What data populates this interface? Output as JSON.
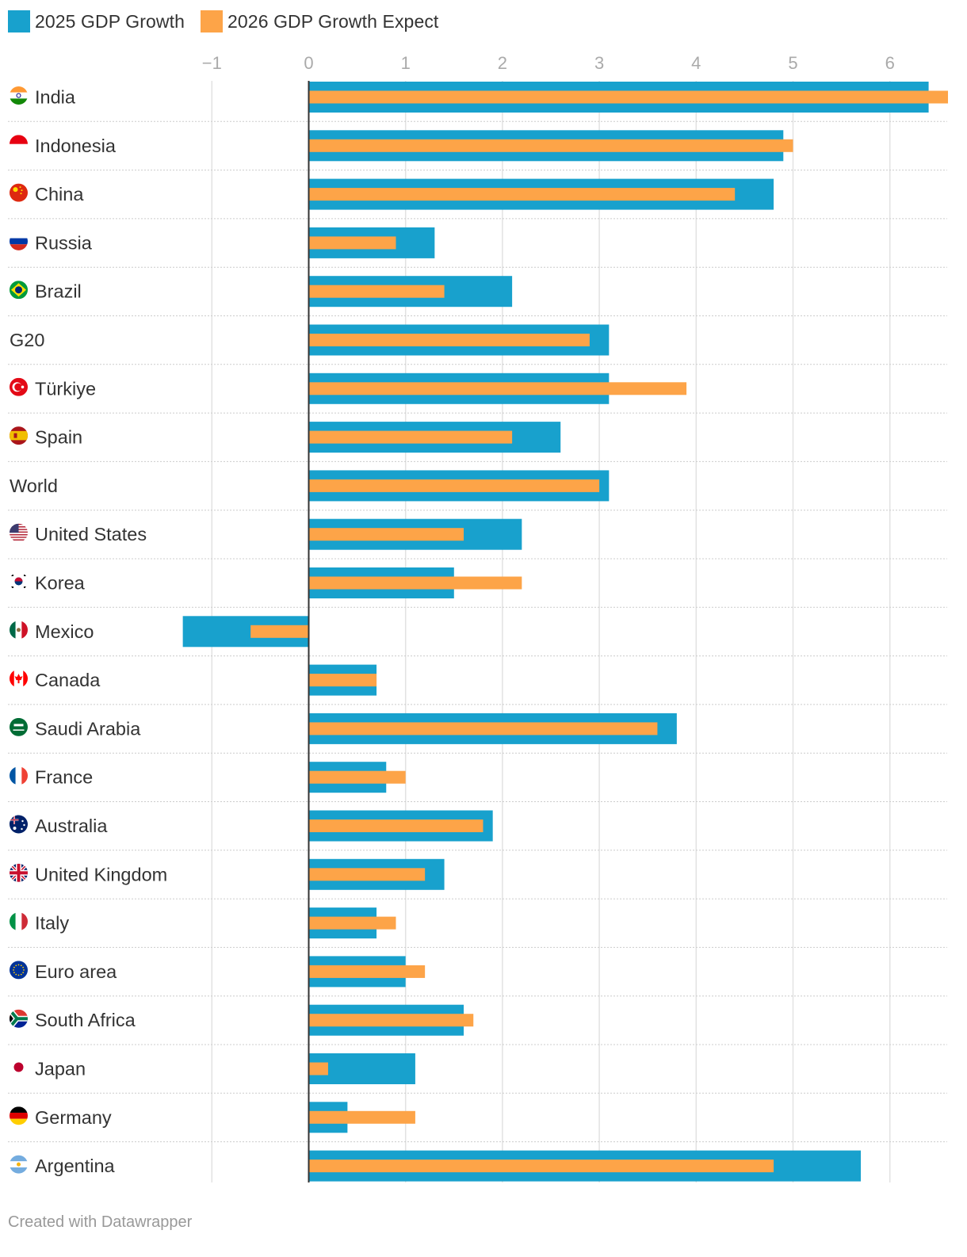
{
  "chart_data": {
    "type": "bar",
    "orientation": "horizontal",
    "series": [
      {
        "name": "2025 GDP Growth",
        "color": "#18a1cd",
        "values": [
          6.4,
          4.9,
          4.8,
          1.3,
          2.1,
          3.1,
          3.1,
          2.6,
          3.1,
          2.2,
          1.5,
          -1.3,
          0.7,
          3.8,
          0.8,
          1.9,
          1.4,
          0.7,
          1.0,
          1.6,
          1.1,
          0.4,
          5.7
        ]
      },
      {
        "name": "2026 GDP Growth Expect",
        "color": "#fda448",
        "values": [
          6.6,
          5.0,
          4.4,
          0.9,
          1.4,
          2.9,
          3.9,
          2.1,
          3.0,
          1.6,
          2.2,
          -0.6,
          0.7,
          3.6,
          1.0,
          1.8,
          1.2,
          0.9,
          1.2,
          1.7,
          0.2,
          1.1,
          4.8
        ]
      }
    ],
    "categories": [
      {
        "label": "India",
        "flag": "india-flag-icon"
      },
      {
        "label": "Indonesia",
        "flag": "indonesia-flag-icon"
      },
      {
        "label": "China",
        "flag": "china-flag-icon"
      },
      {
        "label": "Russia",
        "flag": "russia-flag-icon"
      },
      {
        "label": "Brazil",
        "flag": "brazil-flag-icon"
      },
      {
        "label": "G20",
        "flag": ""
      },
      {
        "label": "Türkiye",
        "flag": "turkiye-flag-icon"
      },
      {
        "label": "Spain",
        "flag": "spain-flag-icon"
      },
      {
        "label": "World",
        "flag": ""
      },
      {
        "label": "United States",
        "flag": "united-states-flag-icon"
      },
      {
        "label": "Korea",
        "flag": "korea-flag-icon"
      },
      {
        "label": "Mexico",
        "flag": "mexico-flag-icon"
      },
      {
        "label": "Canada",
        "flag": "canada-flag-icon"
      },
      {
        "label": "Saudi Arabia",
        "flag": "saudi-arabia-flag-icon"
      },
      {
        "label": "France",
        "flag": "france-flag-icon"
      },
      {
        "label": "Australia",
        "flag": "australia-flag-icon"
      },
      {
        "label": "United Kingdom",
        "flag": "united-kingdom-flag-icon"
      },
      {
        "label": "Italy",
        "flag": "italy-flag-icon"
      },
      {
        "label": "Euro area",
        "flag": "euro-area-flag-icon"
      },
      {
        "label": "South Africa",
        "flag": "south-africa-flag-icon"
      },
      {
        "label": "Japan",
        "flag": "japan-flag-icon"
      },
      {
        "label": "Germany",
        "flag": "germany-flag-icon"
      },
      {
        "label": "Argentina",
        "flag": "argentina-flag-icon"
      }
    ],
    "xlim": [
      -1.2,
      6.6
    ],
    "ticks": [
      -1,
      0,
      1,
      2,
      3,
      4,
      5,
      6
    ],
    "tick_labels": [
      "−1",
      "0",
      "1",
      "2",
      "3",
      "4",
      "5",
      "6"
    ],
    "grid": true,
    "legend": "top-left"
  },
  "footer": {
    "credit": "Created with Datawrapper"
  }
}
